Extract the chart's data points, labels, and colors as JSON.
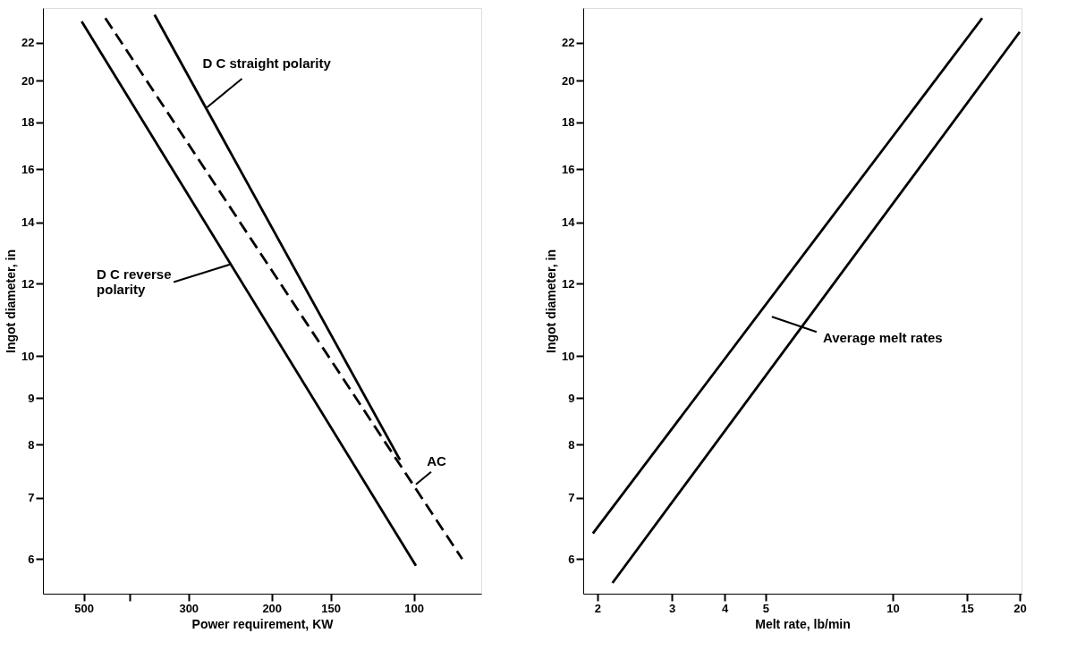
{
  "chart_data": [
    {
      "type": "line",
      "xlabel": "Power requirement, KW",
      "ylabel": "Ingot diameter, in",
      "log": "xy",
      "grid": false,
      "xlim": [
        610,
        72
      ],
      "xticks": [
        500,
        {
          "value": 400,
          "label": null
        },
        300,
        200,
        150,
        100
      ],
      "ylim": [
        5.5,
        24
      ],
      "yticks": [
        6,
        7,
        8,
        9,
        10,
        12,
        14,
        16,
        18,
        20,
        22
      ],
      "series": [
        {
          "color": "#000000",
          "x": [
            505,
            99
          ],
          "values": [
            23.2,
            5.9
          ],
          "line_style": "solid"
        },
        {
          "color": "#000000",
          "x": [
            450,
            79
          ],
          "values": [
            23.4,
            6.0
          ],
          "line_style": "dashed"
        },
        {
          "color": "#000000",
          "x": [
            354,
            107
          ],
          "values": [
            23.6,
            7.7
          ],
          "line_style": "solid"
        }
      ],
      "annotations": [
        {
          "text": "D C straight polarity",
          "x": 274,
          "y": 18.7
        },
        {
          "text": "D C reverse\npolarity",
          "x": 244,
          "y": 12.6
        },
        {
          "text": "AC",
          "x": 99,
          "y": 7.24
        }
      ]
    },
    {
      "type": "line",
      "xlabel": "Melt rate, lb/min",
      "ylabel": "Ingot diameter, in",
      "log": "xy",
      "grid": false,
      "xlim": [
        1.85,
        20.2
      ],
      "xticks": [
        2,
        3,
        4,
        5,
        10,
        15,
        20
      ],
      "ylim": [
        5.5,
        24
      ],
      "yticks": [
        6,
        7,
        8,
        9,
        10,
        12,
        14,
        16,
        18,
        20,
        22
      ],
      "series": [
        {
          "color": "#000000",
          "x": [
            1.95,
            16.3
          ],
          "values": [
            6.4,
            23.4
          ],
          "line_style": "solid"
        },
        {
          "color": "#000000",
          "x": [
            2.17,
            20
          ],
          "values": [
            5.65,
            22.6
          ],
          "line_style": "solid"
        }
      ],
      "annotations": [
        {
          "text": "Average melt rates",
          "x": 6.08,
          "y": 10.77
        }
      ]
    }
  ]
}
